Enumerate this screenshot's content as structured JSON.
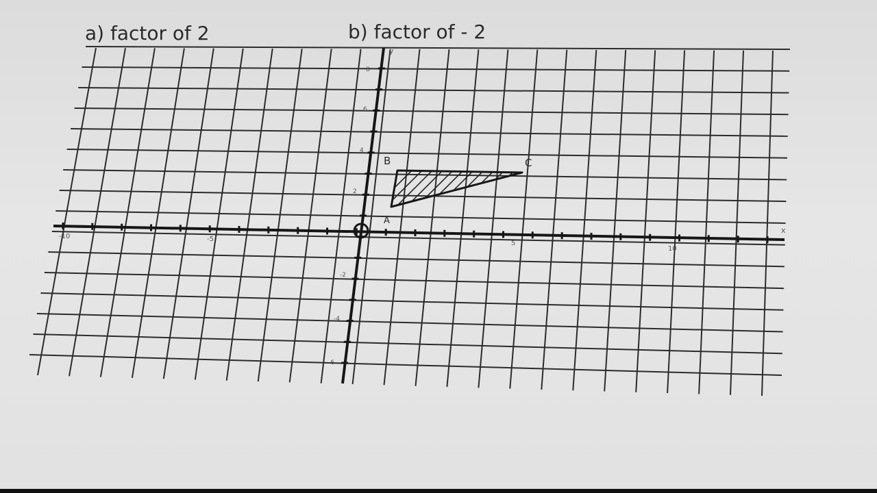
{
  "headings": {
    "part_a": "a)  factor  of   2",
    "part_b": "b)  factor  of - 2"
  },
  "vertices": {
    "a": "A",
    "b": "B",
    "c": "C"
  },
  "axis_labels": {
    "x": "x",
    "y": "y"
  },
  "x_ticks": [
    "-10",
    "-5",
    "5",
    "10"
  ],
  "y_ticks": [
    "8",
    "6",
    "4",
    "2",
    "-2",
    "-4",
    "-6"
  ],
  "origin_label": "O",
  "colors": {
    "paper": "#e2e2e2",
    "ink": "#1e1e1e",
    "grid": "#2b2b2b"
  }
}
